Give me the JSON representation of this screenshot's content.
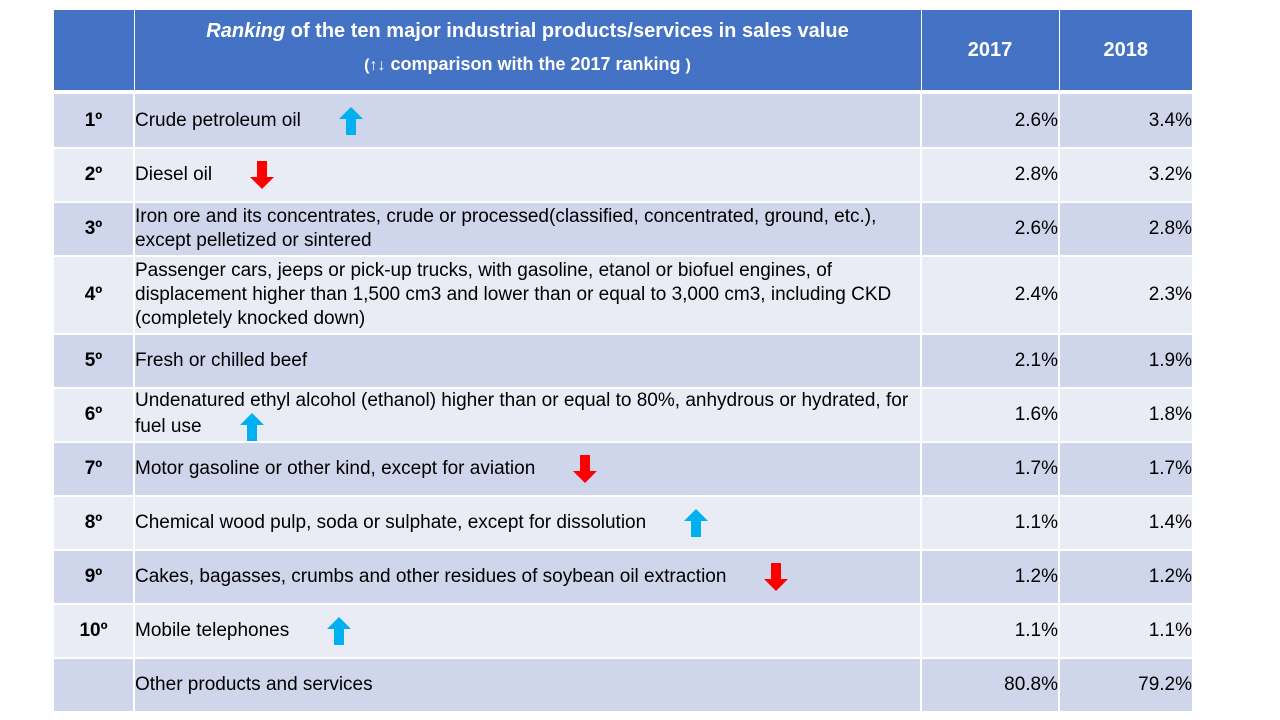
{
  "chart_data": {
    "type": "table",
    "header": {
      "title_italic": "Ranking",
      "title_rest": " of the ten major industrial products/services in sales value",
      "subtitle_open": "(",
      "subtitle_arrows": "↑↓",
      "subtitle_text": "  comparison with the 2017 ranking  ",
      "subtitle_close": ")",
      "year1": "2017",
      "year2": "2018"
    },
    "colors": {
      "header_bg": "#4472c4",
      "row_dark": "#cfd5ea",
      "row_light": "#e9ebf5",
      "arrow_up": "#00b0f0",
      "arrow_down": "#ff0000"
    },
    "rows": [
      {
        "rank": "1º",
        "product": "Crude petroleum oil",
        "change": "up",
        "v2017": "2.6%",
        "v2018": "3.4%"
      },
      {
        "rank": "2º",
        "product": "Diesel oil",
        "change": "down",
        "v2017": "2.8%",
        "v2018": "3.2%"
      },
      {
        "rank": "3º",
        "product": "Iron ore and its concentrates, crude or processed(classified, concentrated, ground, etc.), except pelletized or sintered",
        "change": "none",
        "v2017": "2.6%",
        "v2018": "2.8%"
      },
      {
        "rank": "4º",
        "product": "Passenger cars, jeeps or pick-up trucks,  with gasoline, etanol or biofuel engines, of displacement higher than 1,500 cm3 and lower than or equal to 3,000 cm3, including CKD (completely knocked down)",
        "change": "none",
        "v2017": "2.4%",
        "v2018": "2.3%"
      },
      {
        "rank": "5º",
        "product": "Fresh or chilled beef",
        "change": "none",
        "v2017": "2.1%",
        "v2018": "1.9%"
      },
      {
        "rank": "6º",
        "product": "Undenatured ethyl alcohol (ethanol) higher than or equal to 80%, anhydrous or hydrated, for fuel use",
        "change": "up",
        "v2017": "1.6%",
        "v2018": "1.8%"
      },
      {
        "rank": "7º",
        "product": "Motor gasoline or other kind, except for aviation",
        "change": "down",
        "v2017": "1.7%",
        "v2018": "1.7%"
      },
      {
        "rank": "8º",
        "product": "Chemical wood pulp, soda or sulphate, except for dissolution",
        "change": "up",
        "v2017": "1.1%",
        "v2018": "1.4%"
      },
      {
        "rank": "9º",
        "product": "Cakes, bagasses, crumbs and other residues of soybean oil extraction",
        "change": "down",
        "v2017": "1.2%",
        "v2018": "1.2%"
      },
      {
        "rank": "10º",
        "product": "Mobile telephones",
        "change": "up",
        "v2017": "1.1%",
        "v2018": "1.1%"
      },
      {
        "rank": "",
        "product": "Other products and services",
        "change": "none",
        "v2017": "80.8%",
        "v2018": "79.2%"
      }
    ]
  }
}
